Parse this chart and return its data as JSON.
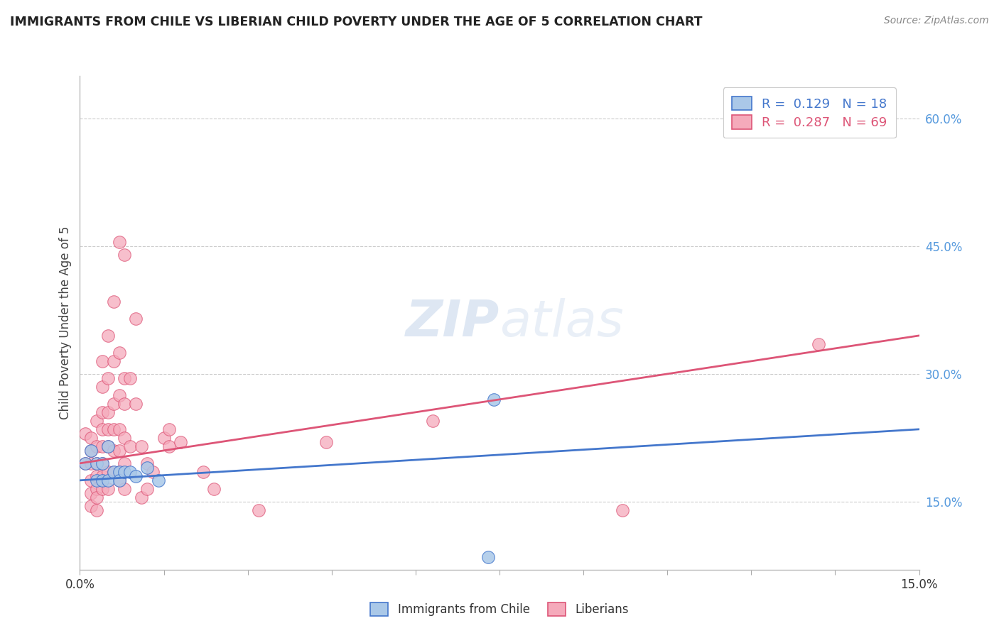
{
  "title": "IMMIGRANTS FROM CHILE VS LIBERIAN CHILD POVERTY UNDER THE AGE OF 5 CORRELATION CHART",
  "source_text": "Source: ZipAtlas.com",
  "ylabel": "Child Poverty Under the Age of 5",
  "xlim": [
    0.0,
    0.15
  ],
  "ylim": [
    0.07,
    0.65
  ],
  "grid_color": "#cccccc",
  "background_color": "#ffffff",
  "chile_color": "#aac8e8",
  "liberia_color": "#f5aabb",
  "chile_line_color": "#4477cc",
  "liberia_line_color": "#dd5577",
  "legend_r_chile": "R =  0.129",
  "legend_n_chile": "N = 18",
  "legend_r_liberia": "R =  0.287",
  "legend_n_liberia": "N = 69",
  "chile_points": [
    [
      0.001,
      0.195
    ],
    [
      0.002,
      0.21
    ],
    [
      0.003,
      0.195
    ],
    [
      0.003,
      0.175
    ],
    [
      0.004,
      0.195
    ],
    [
      0.004,
      0.175
    ],
    [
      0.005,
      0.215
    ],
    [
      0.005,
      0.175
    ],
    [
      0.006,
      0.185
    ],
    [
      0.007,
      0.185
    ],
    [
      0.007,
      0.175
    ],
    [
      0.008,
      0.185
    ],
    [
      0.009,
      0.185
    ],
    [
      0.01,
      0.18
    ],
    [
      0.012,
      0.19
    ],
    [
      0.014,
      0.175
    ],
    [
      0.074,
      0.27
    ],
    [
      0.073,
      0.085
    ]
  ],
  "liberia_points": [
    [
      0.001,
      0.23
    ],
    [
      0.001,
      0.195
    ],
    [
      0.002,
      0.225
    ],
    [
      0.002,
      0.21
    ],
    [
      0.002,
      0.195
    ],
    [
      0.002,
      0.175
    ],
    [
      0.002,
      0.16
    ],
    [
      0.002,
      0.145
    ],
    [
      0.003,
      0.245
    ],
    [
      0.003,
      0.215
    ],
    [
      0.003,
      0.195
    ],
    [
      0.003,
      0.18
    ],
    [
      0.003,
      0.165
    ],
    [
      0.003,
      0.155
    ],
    [
      0.003,
      0.14
    ],
    [
      0.004,
      0.315
    ],
    [
      0.004,
      0.285
    ],
    [
      0.004,
      0.255
    ],
    [
      0.004,
      0.235
    ],
    [
      0.004,
      0.215
    ],
    [
      0.004,
      0.195
    ],
    [
      0.004,
      0.18
    ],
    [
      0.004,
      0.165
    ],
    [
      0.005,
      0.345
    ],
    [
      0.005,
      0.295
    ],
    [
      0.005,
      0.255
    ],
    [
      0.005,
      0.235
    ],
    [
      0.005,
      0.215
    ],
    [
      0.005,
      0.185
    ],
    [
      0.005,
      0.165
    ],
    [
      0.006,
      0.385
    ],
    [
      0.006,
      0.315
    ],
    [
      0.006,
      0.265
    ],
    [
      0.006,
      0.235
    ],
    [
      0.006,
      0.21
    ],
    [
      0.006,
      0.185
    ],
    [
      0.007,
      0.455
    ],
    [
      0.007,
      0.325
    ],
    [
      0.007,
      0.275
    ],
    [
      0.007,
      0.235
    ],
    [
      0.007,
      0.21
    ],
    [
      0.007,
      0.185
    ],
    [
      0.007,
      0.175
    ],
    [
      0.008,
      0.44
    ],
    [
      0.008,
      0.295
    ],
    [
      0.008,
      0.265
    ],
    [
      0.008,
      0.225
    ],
    [
      0.008,
      0.195
    ],
    [
      0.008,
      0.165
    ],
    [
      0.009,
      0.295
    ],
    [
      0.009,
      0.215
    ],
    [
      0.01,
      0.365
    ],
    [
      0.01,
      0.265
    ],
    [
      0.011,
      0.215
    ],
    [
      0.011,
      0.155
    ],
    [
      0.012,
      0.195
    ],
    [
      0.012,
      0.165
    ],
    [
      0.013,
      0.185
    ],
    [
      0.015,
      0.225
    ],
    [
      0.016,
      0.235
    ],
    [
      0.016,
      0.215
    ],
    [
      0.018,
      0.22
    ],
    [
      0.022,
      0.185
    ],
    [
      0.024,
      0.165
    ],
    [
      0.032,
      0.14
    ],
    [
      0.044,
      0.22
    ],
    [
      0.063,
      0.245
    ],
    [
      0.097,
      0.14
    ],
    [
      0.132,
      0.335
    ]
  ],
  "chile_line_x": [
    0.0,
    0.15
  ],
  "chile_line_y": [
    0.175,
    0.235
  ],
  "liberia_line_x": [
    0.0,
    0.15
  ],
  "liberia_line_y": [
    0.195,
    0.345
  ]
}
